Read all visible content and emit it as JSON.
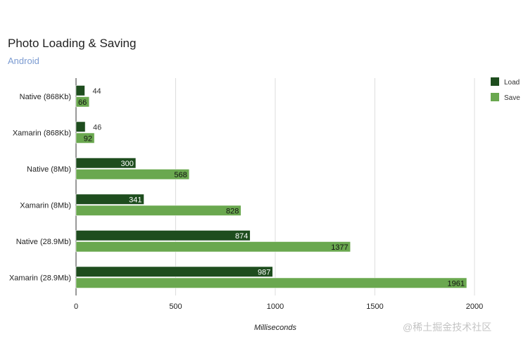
{
  "chart_data": {
    "type": "bar",
    "orientation": "horizontal",
    "title": "Photo Loading & Saving",
    "subtitle": "Android",
    "categories": [
      "Native (868Kb)",
      "Xamarin (868Kb)",
      "Native (8Mb)",
      "Xamarin (8Mb)",
      "Native (28.9Mb)",
      "Xamarin (28.9Mb)"
    ],
    "series": [
      {
        "name": "Load",
        "color": "#1e4d1e",
        "values": [
          44,
          46,
          300,
          341,
          874,
          987
        ]
      },
      {
        "name": "Save",
        "color": "#6aa84f",
        "values": [
          66,
          92,
          568,
          828,
          1377,
          1961
        ]
      }
    ],
    "xlabel": "Milliseconds",
    "ylabel": "",
    "xlim": [
      0,
      2000
    ],
    "xticks": [
      0,
      500,
      1000,
      1500,
      2000
    ],
    "grid": true,
    "legend": "right"
  },
  "watermark": "@稀土掘金技术社区"
}
